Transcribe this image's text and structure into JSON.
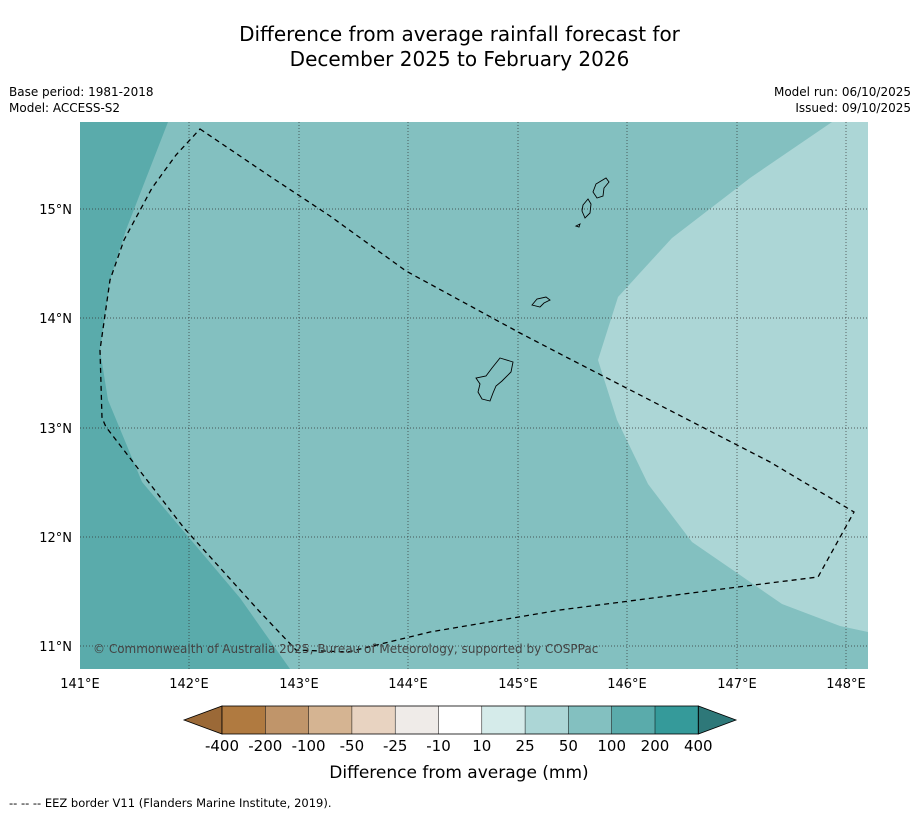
{
  "title": {
    "line1": "Difference from average rainfall forecast for",
    "line2": "December 2025 to February 2026"
  },
  "meta": {
    "base_period": "Base period: 1981-2018",
    "model": "Model: ACCESS-S2",
    "model_run": "Model run: 06/10/2025",
    "issued": "Issued: 09/10/2025"
  },
  "map": {
    "lon_labels": [
      "141°E",
      "142°E",
      "143°E",
      "144°E",
      "145°E",
      "146°E",
      "147°E",
      "148°E"
    ],
    "lat_labels": [
      "15°N",
      "14°N",
      "13°N",
      "12°N",
      "11°N"
    ],
    "copyright": "© Commonwealth of Australia 2025, Bureau of Meteorology, supported by COSPPac",
    "colors": {
      "band_100_200": "#5aabab",
      "band_50_100": "#83c0c0",
      "band_25_50": "#acd6d6"
    }
  },
  "legend": {
    "tick_labels": [
      "-400",
      "-200",
      "-100",
      "-50",
      "-25",
      "-10",
      "10",
      "25",
      "50",
      "100",
      "200",
      "400"
    ],
    "colors": [
      "#9b6937",
      "#b07a40",
      "#c0956a",
      "#d5b492",
      "#e8d3c1",
      "#efebe8",
      "#ffffff",
      "#d5ebea",
      "#acd6d6",
      "#83c0c0",
      "#5aabab",
      "#359a9a",
      "#2e7879"
    ],
    "label": "Difference from average (mm)"
  },
  "footnote": "--  --  -- EEZ border V11 (Flanders Marine Institute, 2019)."
}
